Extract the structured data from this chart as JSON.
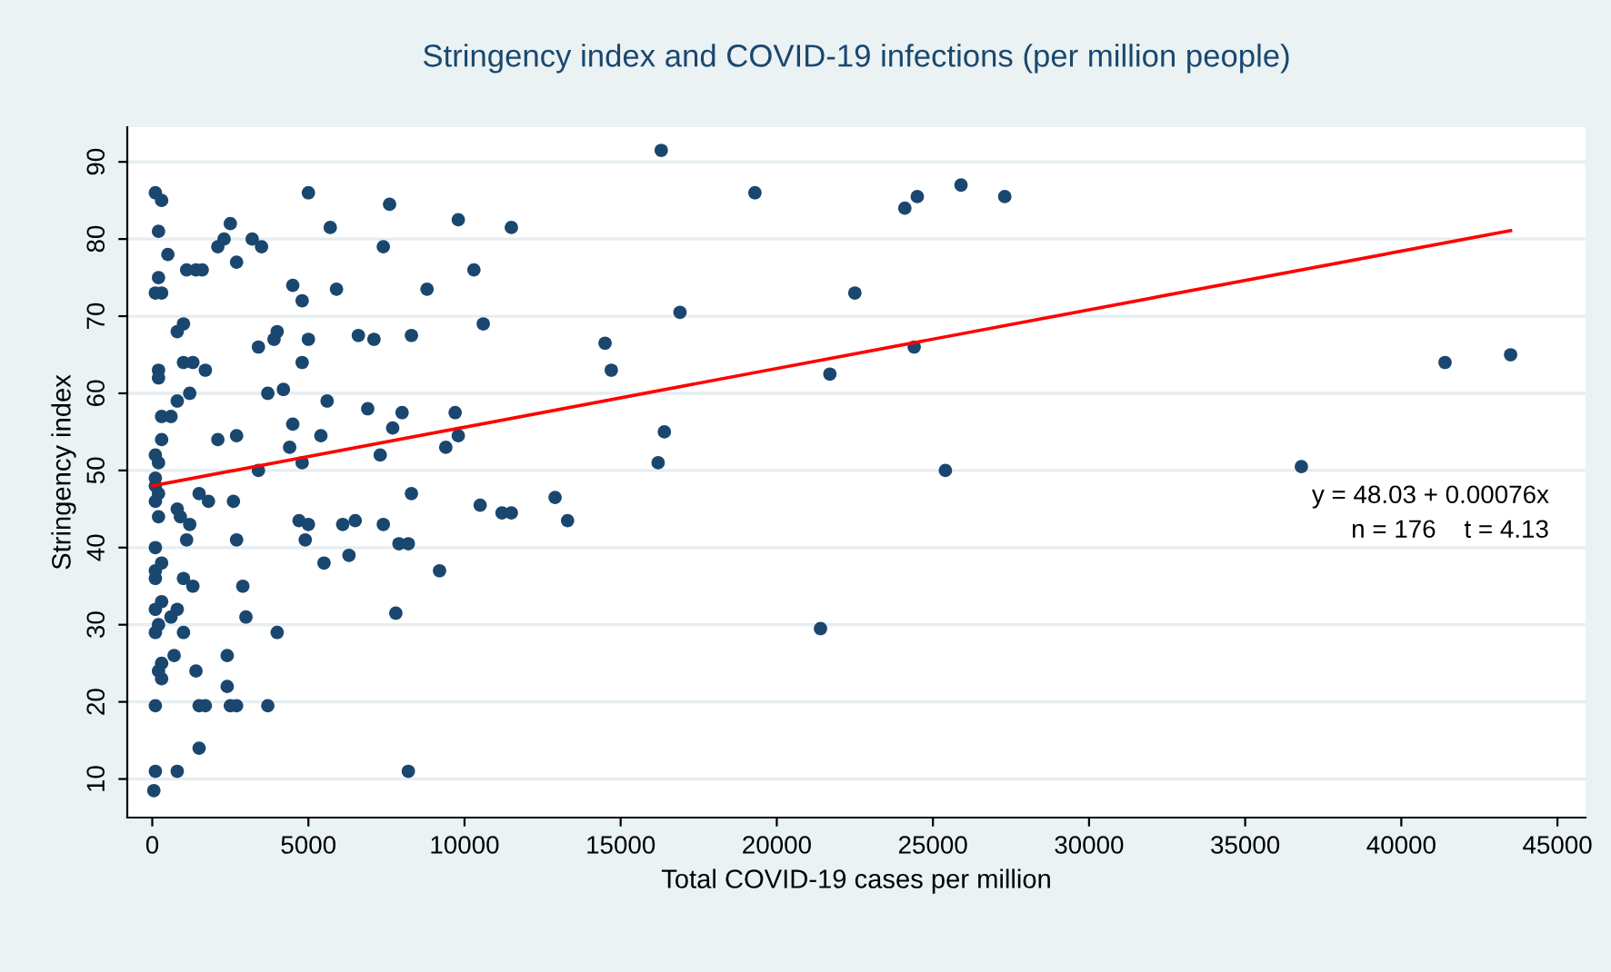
{
  "chart_data": {
    "type": "scatter",
    "title": "Stringency index and COVID-19 infections (per million people)",
    "xlabel": "Total COVID-19 cases per million",
    "ylabel": "Stringency index",
    "xlim": [
      -800,
      45900
    ],
    "ylim": [
      5,
      94.5
    ],
    "xticks": [
      0,
      5000,
      10000,
      15000,
      20000,
      25000,
      30000,
      35000,
      40000,
      45000
    ],
    "yticks": [
      10,
      20,
      30,
      40,
      50,
      60,
      70,
      80,
      90
    ],
    "grid": "y",
    "annotations": [
      "y = 48.03 + 0.00076x",
      "n = 176    t = 4.13"
    ],
    "series": [
      {
        "color": "#1a476f",
        "marker": "circle",
        "x": [
          100,
          300,
          200,
          500,
          200,
          100,
          300,
          800,
          1000,
          1000,
          200,
          200,
          300,
          600,
          800,
          1200,
          300,
          100,
          200,
          100,
          100,
          200,
          100,
          200,
          100,
          300,
          100,
          100,
          300,
          100,
          200,
          100,
          300,
          200,
          300,
          100,
          100,
          50,
          600,
          800,
          700,
          800,
          1000,
          1000,
          1300,
          1400,
          1500,
          1500,
          1700,
          1800,
          1500,
          1200,
          1100,
          900,
          800,
          1700,
          1300,
          1400,
          1600,
          1100,
          2100,
          2300,
          2500,
          2700,
          3200,
          3500,
          2100,
          2700,
          2600,
          2700,
          2900,
          3000,
          2400,
          2400,
          2500,
          2700,
          3700,
          4000,
          3400,
          3700,
          3900,
          4000,
          4200,
          4500,
          4400,
          3400,
          4500,
          4800,
          4800,
          5000,
          5700,
          5900,
          5000,
          5600,
          5400,
          4800,
          5000,
          4700,
          4900,
          5500,
          6100,
          6300,
          6500,
          6900,
          6600,
          7100,
          7400,
          7600,
          7700,
          8000,
          8300,
          8200,
          7900,
          8300,
          7800,
          8200,
          7400,
          7300,
          8800,
          9400,
          9700,
          9800,
          9800,
          10300,
          10600,
          10500,
          9200,
          11200,
          11500,
          11500,
          12900,
          13300,
          14500,
          14700,
          16300,
          16200,
          16400,
          16900,
          19300,
          21700,
          21400,
          22500,
          24100,
          24500,
          24400,
          25900,
          25400,
          27300,
          36800,
          41400,
          43500
        ],
        "values": [
          86,
          85,
          81,
          78,
          75,
          73,
          73,
          68,
          69,
          64,
          63,
          62,
          57,
          57,
          59,
          60,
          54,
          52,
          51,
          49,
          48,
          47,
          46,
          44,
          40,
          38,
          37,
          36,
          33,
          32,
          30,
          29,
          25,
          24,
          23,
          19.5,
          11,
          8.5,
          31,
          32,
          26,
          11,
          29,
          36,
          35,
          24,
          19.5,
          14,
          19.5,
          46,
          47,
          43,
          41,
          44,
          45,
          63,
          64,
          76,
          76,
          76,
          79,
          80,
          82,
          77,
          80,
          79,
          54,
          54.5,
          46,
          41,
          35,
          31,
          26,
          22,
          19.5,
          19.5,
          19.5,
          29,
          50,
          60,
          67,
          68,
          60.5,
          56,
          53,
          66,
          74,
          64,
          72,
          86,
          81.5,
          73.5,
          67,
          59,
          54.5,
          51,
          43,
          43.5,
          41,
          38,
          43,
          39,
          43.5,
          58,
          67.5,
          67,
          79,
          84.5,
          55.5,
          57.5,
          67.5,
          40.5,
          40.5,
          47,
          31.5,
          11,
          43,
          52,
          73.5,
          53,
          57.5,
          54.5,
          82.5,
          76,
          69,
          45.5,
          37,
          44.5,
          44.5,
          81.5,
          46.5,
          43.5,
          66.5,
          63,
          91.5,
          51,
          55,
          70.5,
          86,
          62.5,
          29.5,
          73,
          84,
          85.5,
          66,
          87,
          50,
          85.5,
          50.5,
          64,
          65
        ]
      },
      {
        "type": "line",
        "color": "#ff0000",
        "x": [
          0,
          43500
        ],
        "marker": "none",
        "values": [
          48,
          81.1
        ]
      }
    ]
  }
}
